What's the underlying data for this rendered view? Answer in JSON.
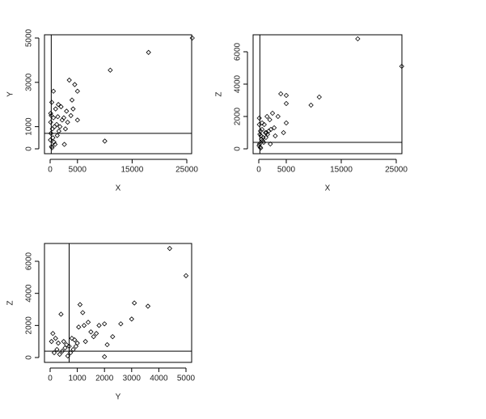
{
  "chart_data": [
    {
      "type": "scatter",
      "xlabel": "X",
      "ylabel": "Y",
      "color": "#000000",
      "x": [
        26000,
        18000,
        11000,
        10000,
        3500,
        4500,
        5000,
        4000,
        4200,
        3800,
        5000,
        3000,
        2500,
        2000,
        1500,
        1000,
        600,
        300,
        200,
        100,
        400,
        800,
        1200,
        1600,
        2200,
        2800,
        500,
        700,
        900,
        1300,
        150,
        50,
        250,
        350,
        1800,
        2600,
        3200,
        600,
        100,
        1400
      ],
      "y": [
        5000,
        4350,
        3550,
        350,
        3100,
        2900,
        2600,
        2200,
        1800,
        1500,
        1300,
        1700,
        1400,
        1900,
        2000,
        1800,
        2600,
        2100,
        1500,
        1200,
        900,
        1000,
        1100,
        800,
        1300,
        900,
        500,
        300,
        200,
        600,
        700,
        400,
        100,
        50,
        1000,
        200,
        1200,
        1400,
        1600,
        1450
      ],
      "xlim": [
        -1036,
        25888
      ],
      "ylim": [
        -219,
        5146
      ],
      "xticks": [
        0,
        5000,
        15000,
        25000
      ],
      "yticks": [
        0,
        1000,
        3000,
        5000
      ],
      "vline": 200,
      "hline": 700
    },
    {
      "type": "scatter",
      "xlabel": "X",
      "ylabel": "Z",
      "color": "#000000",
      "x": [
        18000,
        26000,
        11000,
        9500,
        5000,
        4000,
        5000,
        3500,
        2500,
        5000,
        2000,
        1500,
        1000,
        600,
        300,
        200,
        100,
        400,
        800,
        1200,
        1600,
        2200,
        2800,
        500,
        700,
        900,
        1300,
        150,
        50,
        250,
        350,
        1800,
        3000,
        600,
        100,
        1400,
        2100,
        4500
      ],
      "y": [
        6800,
        5100,
        3200,
        2700,
        3300,
        3400,
        2800,
        2000,
        2200,
        1600,
        1800,
        2000,
        1500,
        1200,
        1100,
        900,
        1500,
        800,
        700,
        1000,
        900,
        1200,
        1300,
        600,
        500,
        400,
        700,
        300,
        200,
        100,
        50,
        1100,
        800,
        1600,
        1900,
        1000,
        300,
        1000
      ],
      "xlim": [
        -1029,
        26029
      ],
      "ylim": [
        -300,
        7050
      ],
      "xticks": [
        0,
        5000,
        15000,
        25000
      ],
      "yticks": [
        0,
        2000,
        4000,
        6000
      ],
      "vline": 200,
      "hline": 400
    },
    {
      "type": "scatter",
      "xlabel": "Y",
      "ylabel": "Z",
      "color": "#000000",
      "x": [
        4400,
        5000,
        3100,
        3600,
        1100,
        3000,
        1200,
        2600,
        1400,
        1800,
        2000,
        1500,
        2100,
        2000,
        400,
        100,
        200,
        300,
        500,
        600,
        700,
        800,
        900,
        1000,
        1300,
        1600,
        1700,
        150,
        250,
        350,
        450,
        550,
        650,
        750,
        850,
        950,
        50,
        2300,
        1250,
        1050
      ],
      "y": [
        6800,
        5100,
        3400,
        3200,
        3300,
        2400,
        2800,
        2100,
        2200,
        2000,
        2100,
        1600,
        800,
        50,
        2700,
        1500,
        1200,
        900,
        1000,
        800,
        700,
        1200,
        1100,
        900,
        1000,
        1300,
        1500,
        300,
        500,
        200,
        400,
        600,
        100,
        300,
        500,
        700,
        1000,
        1300,
        2000,
        1900
      ],
      "xlim": [
        -208,
        5208
      ],
      "ylim": [
        -302,
        7110
      ],
      "xticks": [
        0,
        1000,
        2000,
        3000,
        4000,
        5000
      ],
      "yticks": [
        0,
        2000,
        4000,
        6000
      ],
      "vline": 700,
      "hline": 400
    }
  ]
}
